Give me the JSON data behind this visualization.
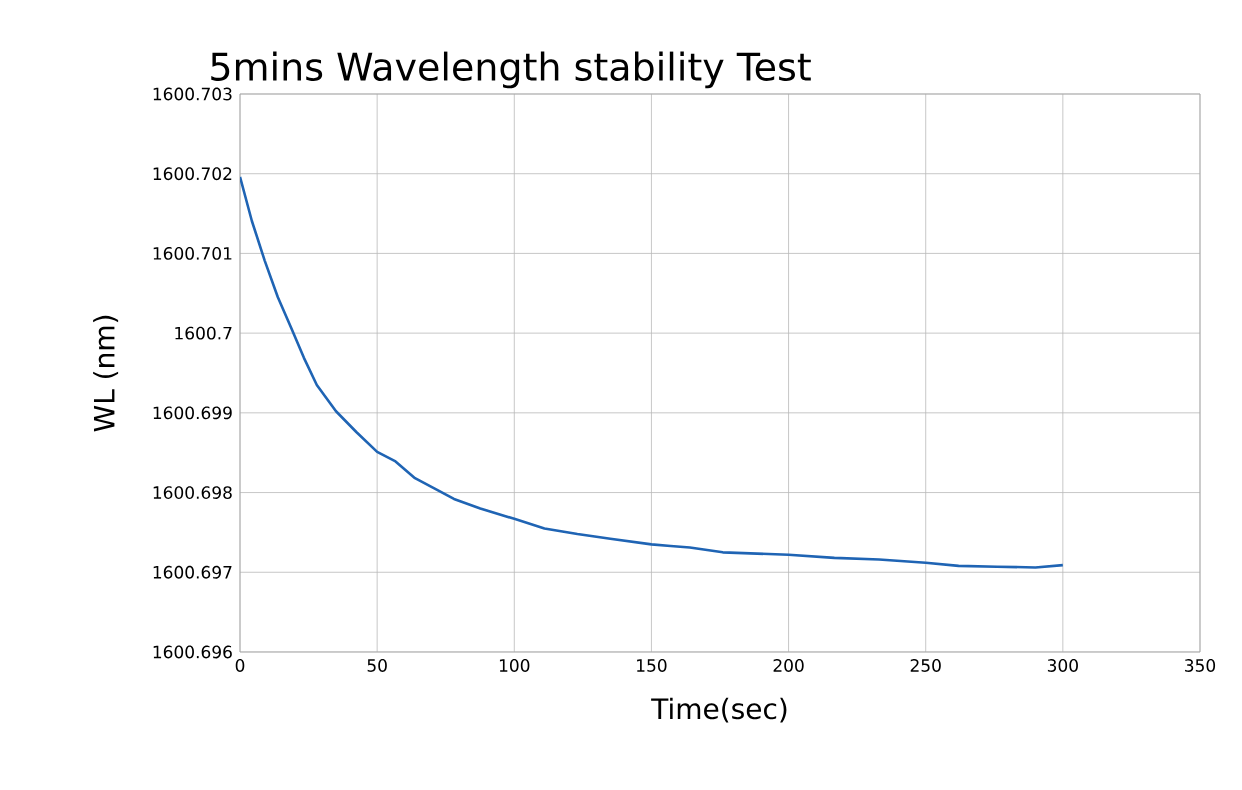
{
  "chart_data": {
    "type": "line",
    "title": "5mins Wavelength stability Test",
    "xlabel": "Time(sec)",
    "ylabel": "WL (nm)",
    "x": [
      0,
      4.3,
      9,
      13.8,
      18.6,
      23.3,
      28,
      35,
      42.4,
      50,
      56.7,
      63.8,
      71,
      78,
      87.6,
      100,
      111,
      123,
      135,
      150,
      157,
      164,
      176,
      200,
      216.7,
      233,
      250,
      262,
      276,
      290,
      300
    ],
    "series": [
      {
        "color": "#1f64b4",
        "values": [
          1600.70196,
          1600.70141,
          1600.70091,
          1600.70045,
          1600.70007,
          1600.69969,
          1600.69935,
          1600.69902,
          1600.69876,
          1600.69851,
          1600.69839,
          1600.69818,
          1600.69805,
          1600.69792,
          1600.6978,
          1600.69767,
          1600.69755,
          1600.69748,
          1600.69742,
          1600.69735,
          1600.69733,
          1600.69731,
          1600.69725,
          1600.69722,
          1600.69718,
          1600.69716,
          1600.69712,
          1600.69708,
          1600.69707,
          1600.69706,
          1600.69709
        ]
      }
    ],
    "xlim": [
      0,
      350
    ],
    "xticks": [
      0,
      50,
      100,
      150,
      200,
      250,
      300,
      350
    ],
    "ylim": [
      1600.696,
      1600.703
    ],
    "yticks": [
      1600.696,
      1600.697,
      1600.698,
      1600.699,
      1600.7,
      1600.701,
      1600.702,
      1600.703
    ],
    "grid": true,
    "marker": "none",
    "line_style": "solid"
  }
}
